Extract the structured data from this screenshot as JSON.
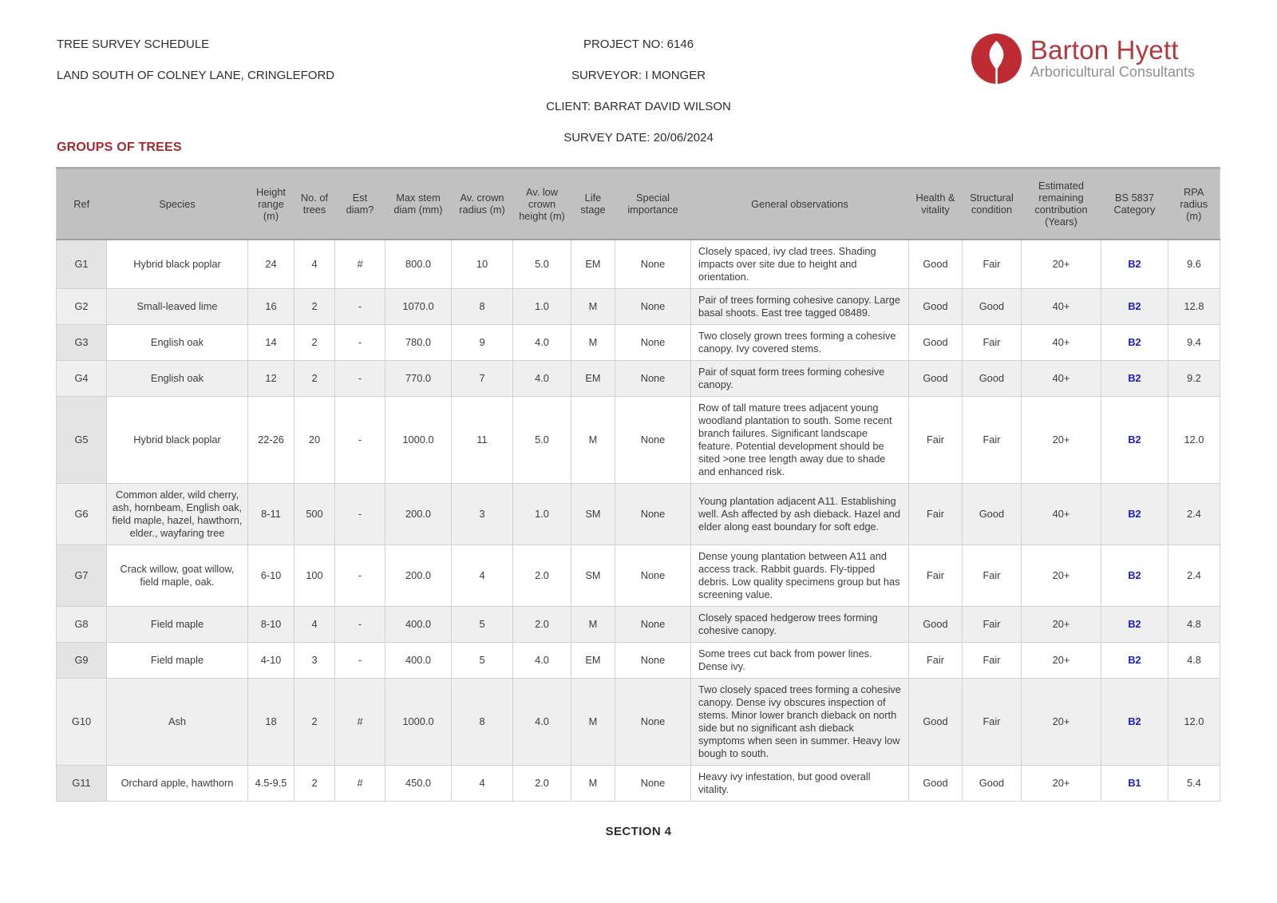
{
  "page": {
    "doc_title": "TREE SURVEY SCHEDULE",
    "site": "LAND SOUTH OF COLNEY LANE, CRINGLEFORD",
    "project_no": "PROJECT NO: 6146",
    "surveyor": "SURVEYOR: I MONGER",
    "client": "CLIENT: BARRAT DAVID WILSON",
    "survey_date": "SURVEY DATE: 20/06/2024",
    "section_heading": "GROUPS OF TREES",
    "footer": "SECTION 4"
  },
  "logo": {
    "name": "Barton Hyett",
    "tagline": "Arboricultural Consultants"
  },
  "colors": {
    "brand_red": "#BE2B33",
    "heading_red": "#A32A2D",
    "category_blue": "#1C1CC0",
    "header_bg": "#C1C1C1",
    "ref_col_bg": "#E4E4E4",
    "alt_row_bg": "#EFEFEF"
  },
  "table": {
    "columns": [
      {
        "key": "ref",
        "label": "Ref"
      },
      {
        "key": "species",
        "label": "Species"
      },
      {
        "key": "height_range",
        "label": "Height range (m)"
      },
      {
        "key": "no_trees",
        "label": "No. of trees"
      },
      {
        "key": "est_diam",
        "label": "Est diam?"
      },
      {
        "key": "max_stem",
        "label": "Max stem diam (mm)"
      },
      {
        "key": "av_crown_radius",
        "label": "Av. crown radius (m)"
      },
      {
        "key": "av_low_crown",
        "label": "Av. low crown height (m)"
      },
      {
        "key": "life_stage",
        "label": "Life stage"
      },
      {
        "key": "special",
        "label": "Special importance"
      },
      {
        "key": "observations",
        "label": "General observations"
      },
      {
        "key": "health",
        "label": "Health & vitality"
      },
      {
        "key": "structural",
        "label": "Structural condition"
      },
      {
        "key": "contribution",
        "label": "Estimated remaining contribution (Years)"
      },
      {
        "key": "category",
        "label": "BS 5837 Category"
      },
      {
        "key": "rpa",
        "label": "RPA radius (m)"
      }
    ],
    "rows": [
      {
        "ref": "G1",
        "species": "Hybrid black poplar",
        "height_range": "24",
        "no_trees": "4",
        "est_diam": "#",
        "max_stem": "800.0",
        "av_crown_radius": "10",
        "av_low_crown": "5.0",
        "life_stage": "EM",
        "special": "None",
        "observations": "Closely spaced, ivy clad trees. Shading impacts over site due to height and orientation.",
        "health": "Good",
        "structural": "Fair",
        "contribution": "20+",
        "category": "B2",
        "rpa": "9.6"
      },
      {
        "ref": "G2",
        "species": "Small-leaved lime",
        "height_range": "16",
        "no_trees": "2",
        "est_diam": "-",
        "max_stem": "1070.0",
        "av_crown_radius": "8",
        "av_low_crown": "1.0",
        "life_stage": "M",
        "special": "None",
        "observations": "Pair of trees forming cohesive canopy. Large basal shoots. East tree tagged 08489.",
        "health": "Good",
        "structural": "Good",
        "contribution": "40+",
        "category": "B2",
        "rpa": "12.8"
      },
      {
        "ref": "G3",
        "species": "English oak",
        "height_range": "14",
        "no_trees": "2",
        "est_diam": "-",
        "max_stem": "780.0",
        "av_crown_radius": "9",
        "av_low_crown": "4.0",
        "life_stage": "M",
        "special": "None",
        "observations": "Two closely grown trees forming a cohesive canopy. Ivy covered stems.",
        "health": "Good",
        "structural": "Fair",
        "contribution": "40+",
        "category": "B2",
        "rpa": "9.4"
      },
      {
        "ref": "G4",
        "species": "English oak",
        "height_range": "12",
        "no_trees": "2",
        "est_diam": "-",
        "max_stem": "770.0",
        "av_crown_radius": "7",
        "av_low_crown": "4.0",
        "life_stage": "EM",
        "special": "None",
        "observations": "Pair of squat form trees forming cohesive canopy.",
        "health": "Good",
        "structural": "Good",
        "contribution": "40+",
        "category": "B2",
        "rpa": "9.2"
      },
      {
        "ref": "G5",
        "species": "Hybrid black poplar",
        "height_range": "22-26",
        "no_trees": "20",
        "est_diam": "-",
        "max_stem": "1000.0",
        "av_crown_radius": "11",
        "av_low_crown": "5.0",
        "life_stage": "M",
        "special": "None",
        "observations": "Row of tall mature trees adjacent young woodland plantation to south. Some recent branch failures. Significant landscape feature. Potential development should be sited >one tree length away due to shade and enhanced risk.",
        "health": "Fair",
        "structural": "Fair",
        "contribution": "20+",
        "category": "B2",
        "rpa": "12.0"
      },
      {
        "ref": "G6",
        "species": "Common alder, wild cherry, ash, hornbeam, English oak, field maple, hazel, hawthorn, elder., wayfaring tree",
        "height_range": "8-11",
        "no_trees": "500",
        "est_diam": "-",
        "max_stem": "200.0",
        "av_crown_radius": "3",
        "av_low_crown": "1.0",
        "life_stage": "SM",
        "special": "None",
        "observations": "Young plantation adjacent A11. Establishing well. Ash affected by ash dieback. Hazel and elder along east boundary for soft edge.",
        "health": "Fair",
        "structural": "Good",
        "contribution": "40+",
        "category": "B2",
        "rpa": "2.4"
      },
      {
        "ref": "G7",
        "species": "Crack willow, goat willow, field maple, oak.",
        "height_range": "6-10",
        "no_trees": "100",
        "est_diam": "-",
        "max_stem": "200.0",
        "av_crown_radius": "4",
        "av_low_crown": "2.0",
        "life_stage": "SM",
        "special": "None",
        "observations": "Dense young plantation between A11 and access track. Rabbit guards. Fly-tipped debris. Low quality specimens group but has screening value.",
        "health": "Fair",
        "structural": "Fair",
        "contribution": "20+",
        "category": "B2",
        "rpa": "2.4"
      },
      {
        "ref": "G8",
        "species": "Field maple",
        "height_range": "8-10",
        "no_trees": "4",
        "est_diam": "-",
        "max_stem": "400.0",
        "av_crown_radius": "5",
        "av_low_crown": "2.0",
        "life_stage": "M",
        "special": "None",
        "observations": "Closely spaced hedgerow trees forming cohesive canopy.",
        "health": "Good",
        "structural": "Fair",
        "contribution": "20+",
        "category": "B2",
        "rpa": "4.8"
      },
      {
        "ref": "G9",
        "species": "Field maple",
        "height_range": "4-10",
        "no_trees": "3",
        "est_diam": "-",
        "max_stem": "400.0",
        "av_crown_radius": "5",
        "av_low_crown": "4.0",
        "life_stage": "EM",
        "special": "None",
        "observations": "Some trees cut back from power lines. Dense ivy.",
        "health": "Fair",
        "structural": "Fair",
        "contribution": "20+",
        "category": "B2",
        "rpa": "4.8"
      },
      {
        "ref": "G10",
        "species": "Ash",
        "height_range": "18",
        "no_trees": "2",
        "est_diam": "#",
        "max_stem": "1000.0",
        "av_crown_radius": "8",
        "av_low_crown": "4.0",
        "life_stage": "M",
        "special": "None",
        "observations": "Two closely spaced trees forming a cohesive canopy. Dense ivy obscures inspection of stems. Minor lower branch dieback on north side but no significant ash dieback symptoms when seen in summer. Heavy low bough to south.",
        "health": "Good",
        "structural": "Fair",
        "contribution": "20+",
        "category": "B2",
        "rpa": "12.0"
      },
      {
        "ref": "G11",
        "species": "Orchard apple, hawthorn",
        "height_range": "4.5-9.5",
        "no_trees": "2",
        "est_diam": "#",
        "max_stem": "450.0",
        "av_crown_radius": "4",
        "av_low_crown": "2.0",
        "life_stage": "M",
        "special": "None",
        "observations": "Heavy ivy infestation, but good overall vitality.",
        "health": "Good",
        "structural": "Good",
        "contribution": "20+",
        "category": "B1",
        "rpa": "5.4"
      }
    ]
  }
}
